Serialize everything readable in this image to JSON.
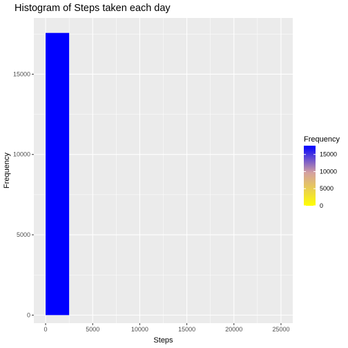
{
  "chart_data": {
    "type": "bar",
    "title": "Histogram of Steps taken each day",
    "xlabel": "Steps",
    "ylabel": "Frequency",
    "xlim": [
      -1250,
      26250
    ],
    "ylim": [
      -500,
      18500
    ],
    "x_ticks": [
      0,
      5000,
      10000,
      15000,
      20000,
      25000
    ],
    "x_tick_labels": [
      "0",
      "5000",
      "10000",
      "15000",
      "20000",
      "25000"
    ],
    "y_ticks": [
      0,
      5000,
      10000,
      15000
    ],
    "y_tick_labels": [
      "0",
      "5000",
      "10000",
      "15000"
    ],
    "grid": true,
    "bins": [
      {
        "x_start": 0,
        "x_end": 2500,
        "frequency": 17568
      }
    ],
    "legend": {
      "title": "Frequency",
      "placement": "right",
      "type": "colorbar",
      "range": [
        0,
        17568
      ],
      "low_color": "#ffff00",
      "mid_color": "#d4a0a0",
      "high_color": "#0000ff",
      "ticks": [
        0,
        5000,
        10000,
        15000
      ],
      "tick_labels": [
        "0",
        "5000",
        "10000",
        "15000"
      ]
    },
    "colors": {
      "panel_background": "#ebebeb",
      "grid_major": "#ffffff",
      "bar_fill": "#0000ff"
    }
  }
}
